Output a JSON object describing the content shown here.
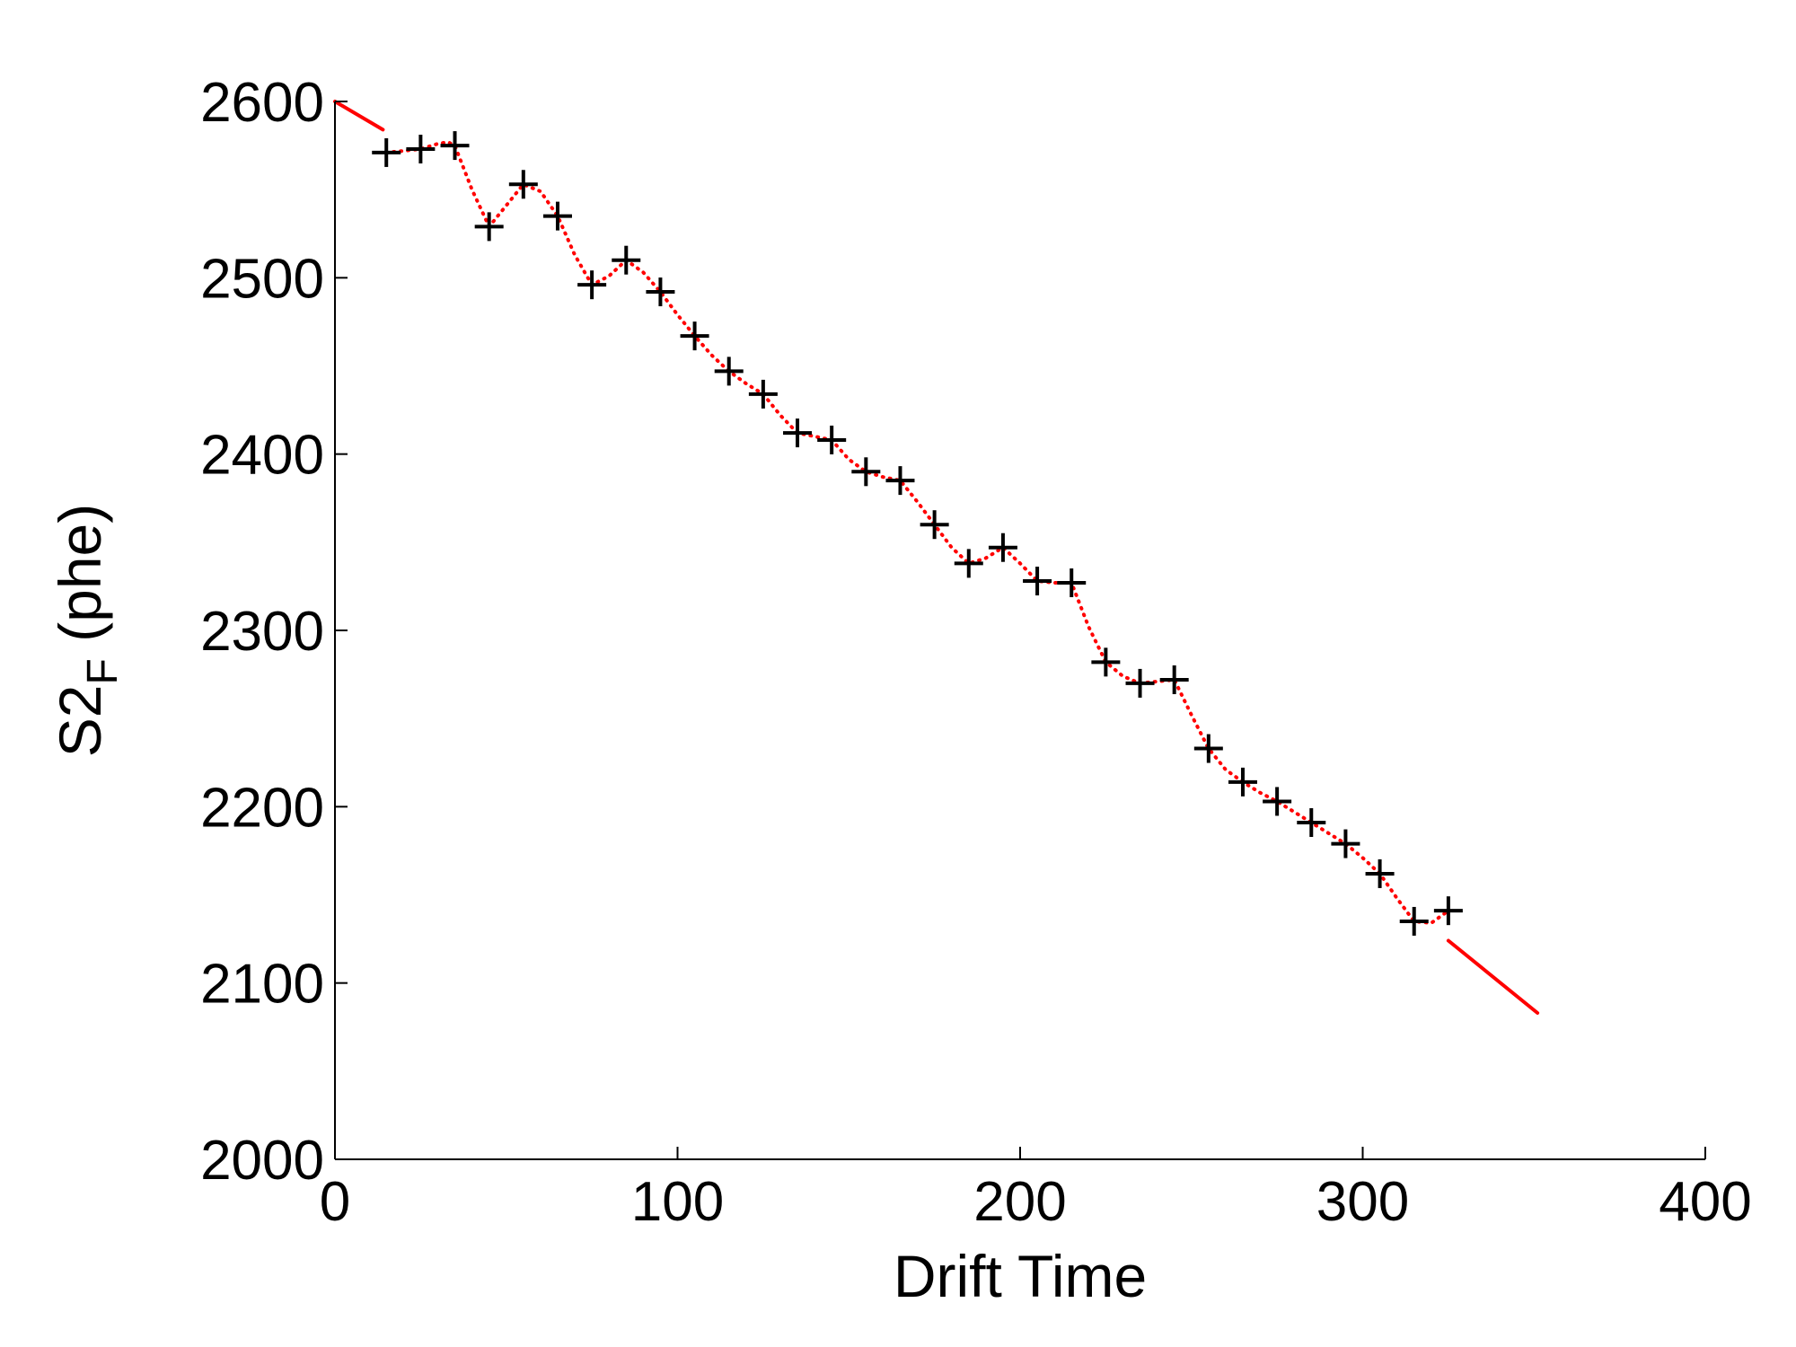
{
  "chart_data": {
    "type": "scatter",
    "title": "",
    "xlabel": "Drift Time",
    "ylabel": {
      "main": "S2",
      "subscript": "F",
      "suffix": " (phe)"
    },
    "xlim": [
      0,
      400
    ],
    "ylim": [
      2000,
      2600
    ],
    "xticks": [
      "0",
      "100",
      "200",
      "300",
      "400"
    ],
    "yticks": [
      "2000",
      "2100",
      "2200",
      "2300",
      "2400",
      "2500",
      "2600"
    ],
    "grid": false,
    "legend": "none",
    "colors": {
      "markers": "#000000",
      "fit": "#ff0000"
    },
    "series": [
      {
        "marker": "plus",
        "x": [
          15,
          25,
          35,
          45,
          55,
          65,
          75,
          85,
          95,
          105,
          115,
          125,
          135,
          145,
          155,
          165,
          175,
          185,
          195,
          205,
          215,
          225,
          235,
          245,
          255,
          265,
          275,
          285,
          295,
          305,
          315,
          325
        ],
        "y": [
          2571,
          2573,
          2575,
          2529,
          2553,
          2535,
          2496,
          2510,
          2492,
          2467,
          2447,
          2434,
          2412,
          2408,
          2390,
          2385,
          2360,
          2338,
          2347,
          2328,
          2327,
          2282,
          2270,
          2272,
          2233,
          2214,
          2203,
          2191,
          2179,
          2162,
          2135,
          2141
        ]
      },
      {
        "line": "dotted",
        "x": [
          15,
          20,
          25,
          30,
          33,
          35,
          40,
          45,
          50,
          55,
          60,
          65,
          70,
          75,
          80,
          85,
          90,
          95,
          100,
          105,
          110,
          115,
          120,
          125,
          130,
          135,
          140,
          145,
          150,
          155,
          160,
          165,
          170,
          175,
          180,
          185,
          190,
          195,
          200,
          205,
          210,
          215,
          220,
          225,
          230,
          235,
          240,
          245,
          250,
          255,
          260,
          265,
          270,
          275,
          280,
          285,
          290,
          295,
          300,
          305,
          310,
          315,
          320,
          325
        ],
        "y": [
          2571,
          2572,
          2573,
          2576,
          2577,
          2575,
          2550,
          2529,
          2541,
          2553,
          2549,
          2535,
          2513,
          2496,
          2501,
          2510,
          2503,
          2492,
          2479,
          2467,
          2456,
          2447,
          2440,
          2434,
          2422,
          2412,
          2410,
          2408,
          2397,
          2390,
          2387,
          2385,
          2373,
          2360,
          2347,
          2338,
          2341,
          2347,
          2338,
          2328,
          2327,
          2327,
          2302,
          2282,
          2274,
          2270,
          2271,
          2272,
          2252,
          2233,
          2221,
          2214,
          2208,
          2203,
          2197,
          2191,
          2185,
          2179,
          2171,
          2162,
          2148,
          2135,
          2134,
          2141
        ]
      },
      {
        "line": "solid",
        "x": [
          0,
          14
        ],
        "y": [
          2600,
          2584
        ]
      },
      {
        "line": "solid",
        "x": [
          325,
          351
        ],
        "y": [
          2124,
          2083
        ]
      }
    ]
  }
}
